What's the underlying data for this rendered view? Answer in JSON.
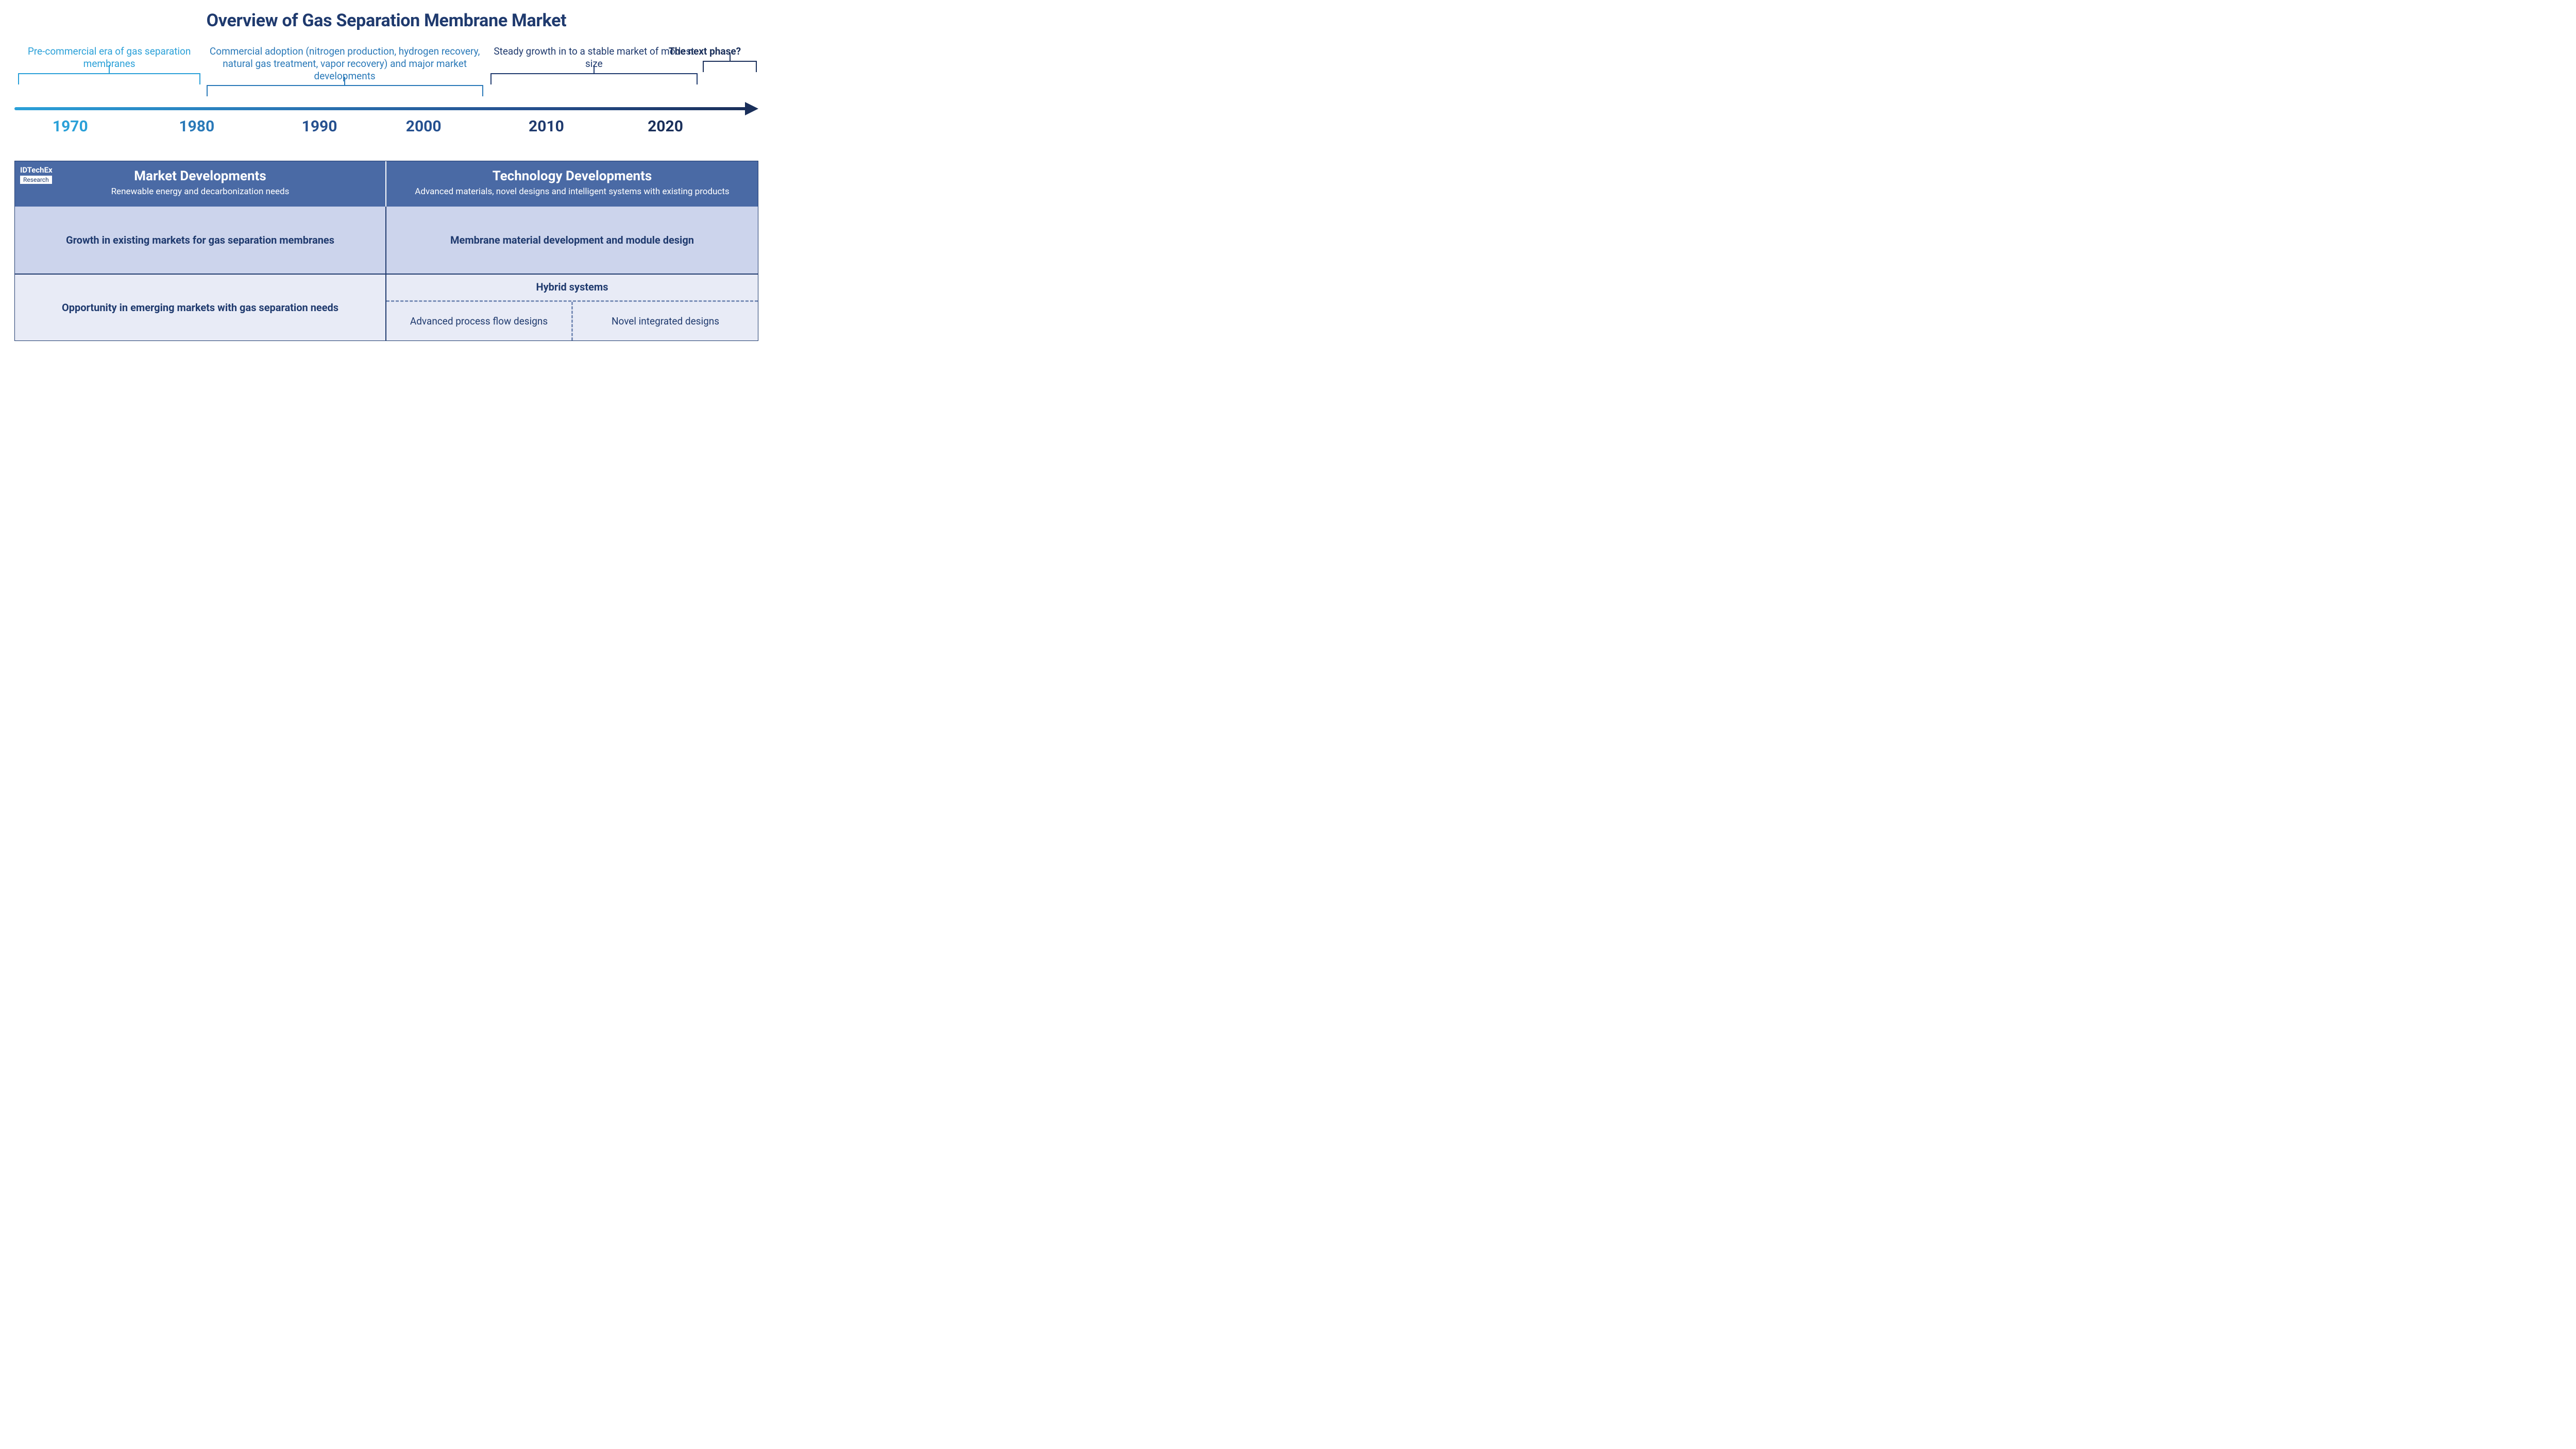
{
  "title": "Overview of Gas Separation Membrane Market",
  "timeline": {
    "axis_gradient": [
      "#2aa0d8",
      "#2a79b8",
      "#25508f",
      "#1a2f5a"
    ],
    "years": [
      {
        "label": "1970",
        "left_pct": 7.5,
        "color": "#2aa0d8"
      },
      {
        "label": "1980",
        "left_pct": 24.5,
        "color": "#2a79b8"
      },
      {
        "label": "1990",
        "left_pct": 41.0,
        "color": "#25508f"
      },
      {
        "label": "2000",
        "left_pct": 55.0,
        "color": "#25508f"
      },
      {
        "label": "2010",
        "left_pct": 71.5,
        "color": "#1f3a6e"
      },
      {
        "label": "2020",
        "left_pct": 87.5,
        "color": "#1a2f5a"
      }
    ],
    "phases": [
      {
        "text": "Pre-commercial era of gas separation membranes",
        "color": "#2aa0d8",
        "left_pct": 0.5,
        "width_pct": 24.5,
        "fontweight": 400,
        "bracket_left_pct": 0,
        "bracket_width_pct": 100
      },
      {
        "text": "Commercial adoption (nitrogen production, hydrogen recovery, natural gas treatment, vapor recovery) and major market developments",
        "color": "#2a79b8",
        "left_pct": 25.8,
        "width_pct": 37.2,
        "fontweight": 400,
        "bracket_left_pct": 0,
        "bracket_width_pct": 100
      },
      {
        "text": "Steady growth in to a stable market of modest size",
        "color": "#1f3a6e",
        "left_pct": 64.0,
        "width_pct": 27.8,
        "fontweight": 400,
        "bracket_left_pct": 0,
        "bracket_width_pct": 100
      },
      {
        "text": "The next phase?",
        "color": "#1a2f5a",
        "left_pct": 85.8,
        "width_pct": 14.0,
        "fontweight": 700,
        "bracket_left_pct": 48,
        "bracket_width_pct": 52
      }
    ]
  },
  "table": {
    "header_bg": "#4a6aa5",
    "logo_brand": "IDTechEx",
    "logo_sub": "Research",
    "market": {
      "title": "Market Developments",
      "subtitle": "Renewable energy and decarbonization needs",
      "row1": "Growth in existing markets for gas separation membranes",
      "row2": "Opportunity in emerging markets with gas separation needs"
    },
    "tech": {
      "title": "Technology Developments",
      "subtitle": "Advanced materials, novel designs and intelligent systems with existing products",
      "row1": "Membrane material development and module design",
      "hybrid_title": "Hybrid systems",
      "hybrid_left": "Advanced process flow designs",
      "hybrid_right": "Novel integrated designs"
    },
    "row1_bg": "#ccd4ec",
    "row2_bg": "#e8ebf6",
    "text_color": "#1f3a6e",
    "dash_color": "#7b8fb8"
  }
}
